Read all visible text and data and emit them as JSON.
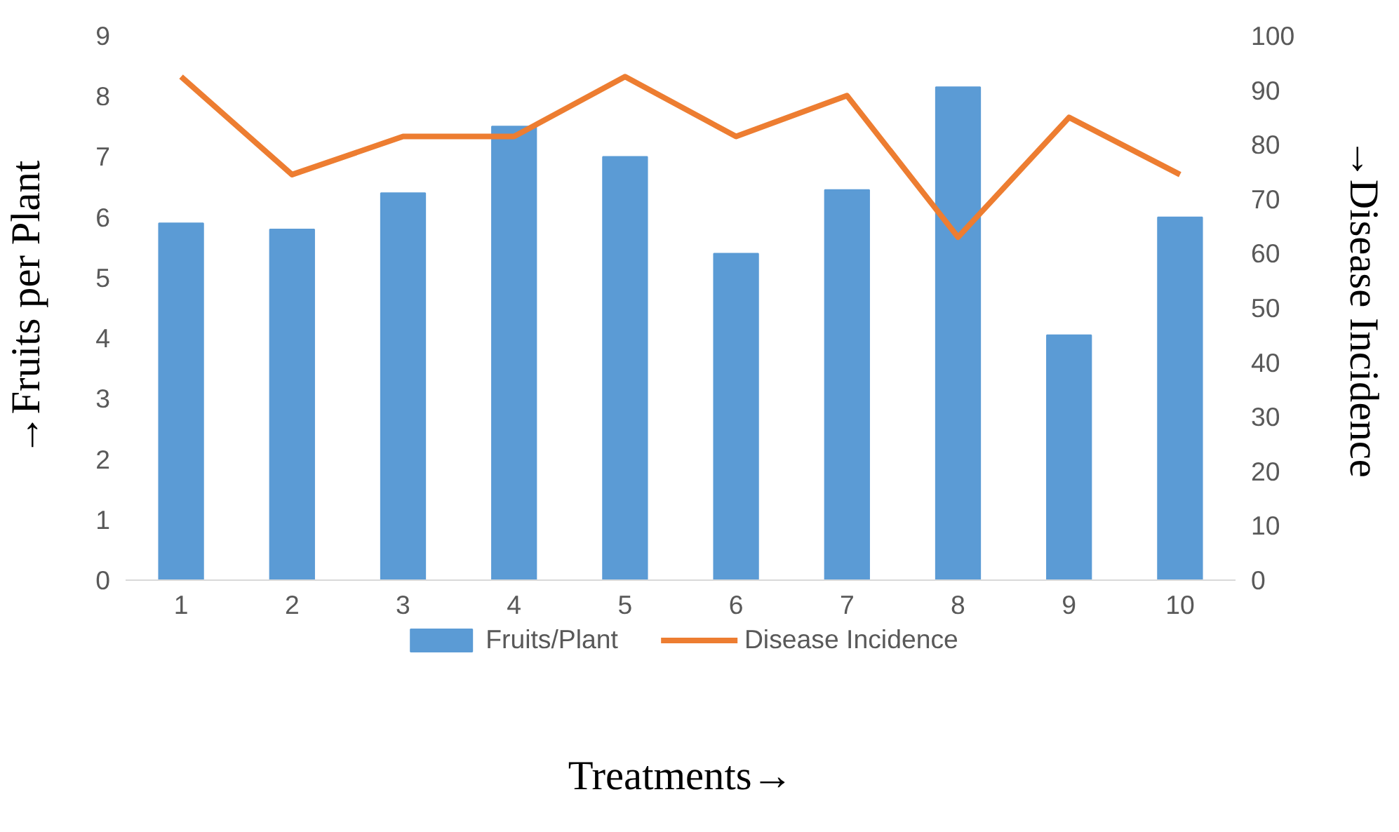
{
  "chart_data": {
    "type": "bar",
    "xlabel": "Treatments→",
    "ylabel": "→Fruits per Plant",
    "y2label": "→Disease Incidence",
    "categories": [
      "1",
      "2",
      "3",
      "4",
      "5",
      "6",
      "7",
      "8",
      "9",
      "10"
    ],
    "series": [
      {
        "name": "Fruits/Plant",
        "color": "#5b9bd5",
        "values": [
          5.9,
          5.8,
          6.4,
          7.5,
          7.0,
          5.4,
          6.45,
          8.15,
          4.05,
          6.0
        ]
      },
      {
        "name": "Disease Incidence",
        "type": "line",
        "axis": "y2",
        "color": "#ed7d31",
        "values": [
          92.5,
          74.5,
          81.5,
          81.5,
          92.5,
          81.5,
          89,
          63,
          85,
          74.5
        ]
      }
    ],
    "ylim": [
      0,
      9
    ],
    "yticks": [
      0,
      1,
      2,
      3,
      4,
      5,
      6,
      7,
      8,
      9
    ],
    "y2lim": [
      0,
      100
    ],
    "y2ticks": [
      0,
      10,
      20,
      30,
      40,
      50,
      60,
      70,
      80,
      90,
      100
    ],
    "legend": "bottom"
  }
}
